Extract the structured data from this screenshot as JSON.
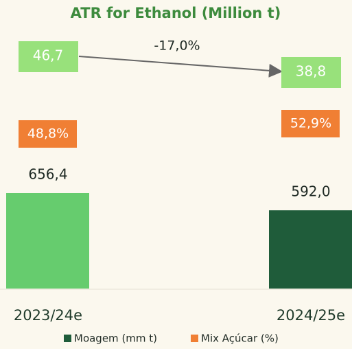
{
  "chart_data": {
    "type": "bar",
    "title": "ATR for Ethanol (Million t)",
    "categories": [
      "2023/24e",
      "2024/25e"
    ],
    "ylim": [
      300,
      700
    ],
    "series": [
      {
        "name": "Moagem (mm t)",
        "color": "#1f5c3a",
        "colors": [
          "#66cc6e",
          "#1f5c3a"
        ],
        "values": [
          656.4,
          592.0
        ],
        "value_labels": [
          "656,4",
          "592,0"
        ]
      },
      {
        "name": "Mix Açúcar (%)",
        "color": "#f07f34",
        "values": [
          48.8,
          52.9
        ],
        "value_labels": [
          "48,8%",
          "52,9%"
        ]
      }
    ],
    "atr": {
      "color": "#98e17b",
      "values": [
        46.7,
        38.8
      ],
      "value_labels": [
        "46,7",
        "38,8"
      ]
    },
    "annotation": "-17,0%"
  }
}
